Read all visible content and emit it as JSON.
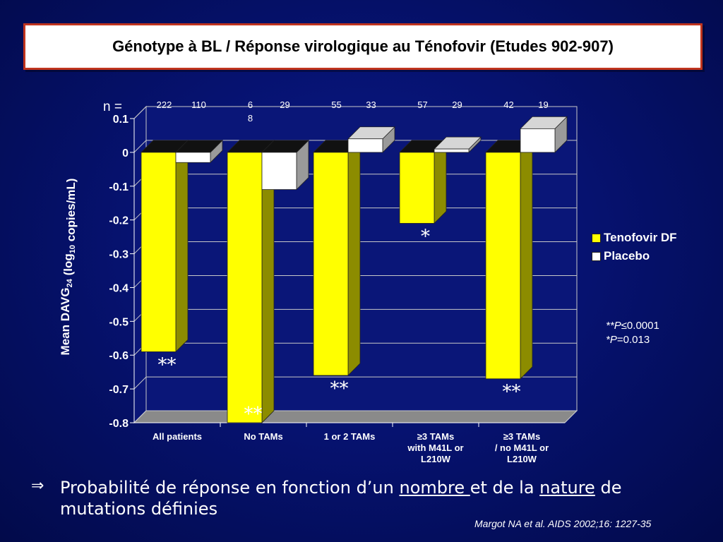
{
  "title": "Génotype à BL / Réponse virologique au Ténofovir (Etudes 902-907)",
  "chart_data": {
    "type": "bar",
    "categories": [
      [
        "All patients"
      ],
      [
        "No TAMs"
      ],
      [
        "1 or 2 TAMs"
      ],
      [
        "≥3 TAMs",
        "with M41L or",
        "L210W"
      ],
      [
        "≥3 TAMs",
        "/ no M41L or",
        "L210W"
      ]
    ],
    "series": [
      {
        "name": "Tenofovir DF",
        "color": "#ffff00",
        "values": [
          -0.59,
          -0.8,
          -0.66,
          -0.21,
          -0.67
        ],
        "n": [
          "222",
          "68",
          "55",
          "57",
          "42"
        ]
      },
      {
        "name": "Placebo",
        "color": "#ffffff",
        "values": [
          -0.03,
          -0.11,
          0.04,
          0.01,
          0.07
        ],
        "n": [
          "110",
          "29",
          "33",
          "29",
          "19"
        ]
      }
    ],
    "significance": [
      "**",
      "**",
      "**",
      "*",
      "**"
    ],
    "n_label": "n =",
    "ylabel_main": "Mean DAVG",
    "ylabel_sub": "24",
    "ylabel_mid": "  (log",
    "ylabel_sub2": "10",
    "ylabel_end": " copies/mL)",
    "ylim": [
      -0.8,
      0.1
    ],
    "yticks": [
      "0.1",
      "0",
      "-0.1",
      "-0.2",
      "-0.3",
      "-0.4",
      "-0.5",
      "-0.6",
      "-0.7",
      "-0.8"
    ],
    "legend_position": "right",
    "grid": true
  },
  "notes": {
    "p1_prefix": "**",
    "p1_italic": "P",
    "p1_value": "≤0.0001",
    "p2_prefix": "*",
    "p2_italic": "P",
    "p2_value": "=0.013"
  },
  "footer": {
    "arrow": "⇒",
    "text_1": "Probabilité de réponse en fonction d’un ",
    "text_u1": "nombre ",
    "text_2": "et de la ",
    "text_u2": "nature",
    "text_3": " de mutations définies"
  },
  "citation": "Margot NA et al. AIDS 2002;16: 1227-35"
}
